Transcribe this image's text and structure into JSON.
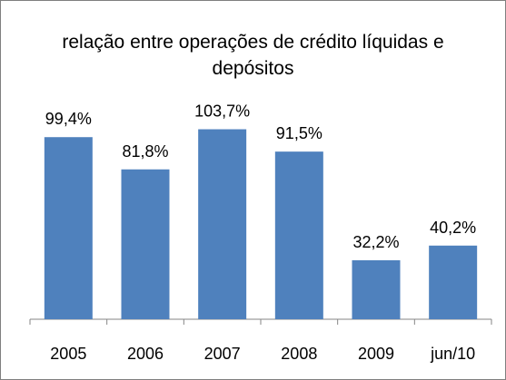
{
  "chart_data": {
    "type": "bar",
    "title": "relação entre operações de crédito líquidas e depósitos",
    "categories": [
      "2005",
      "2006",
      "2007",
      "2008",
      "2009",
      "jun/10"
    ],
    "values": [
      99.4,
      81.8,
      103.7,
      91.5,
      32.2,
      40.2
    ],
    "value_labels": [
      "99,4%",
      "81,8%",
      "103,7%",
      "91,5%",
      "32,2%",
      "40,2%"
    ],
    "color": "#4f81bd"
  }
}
